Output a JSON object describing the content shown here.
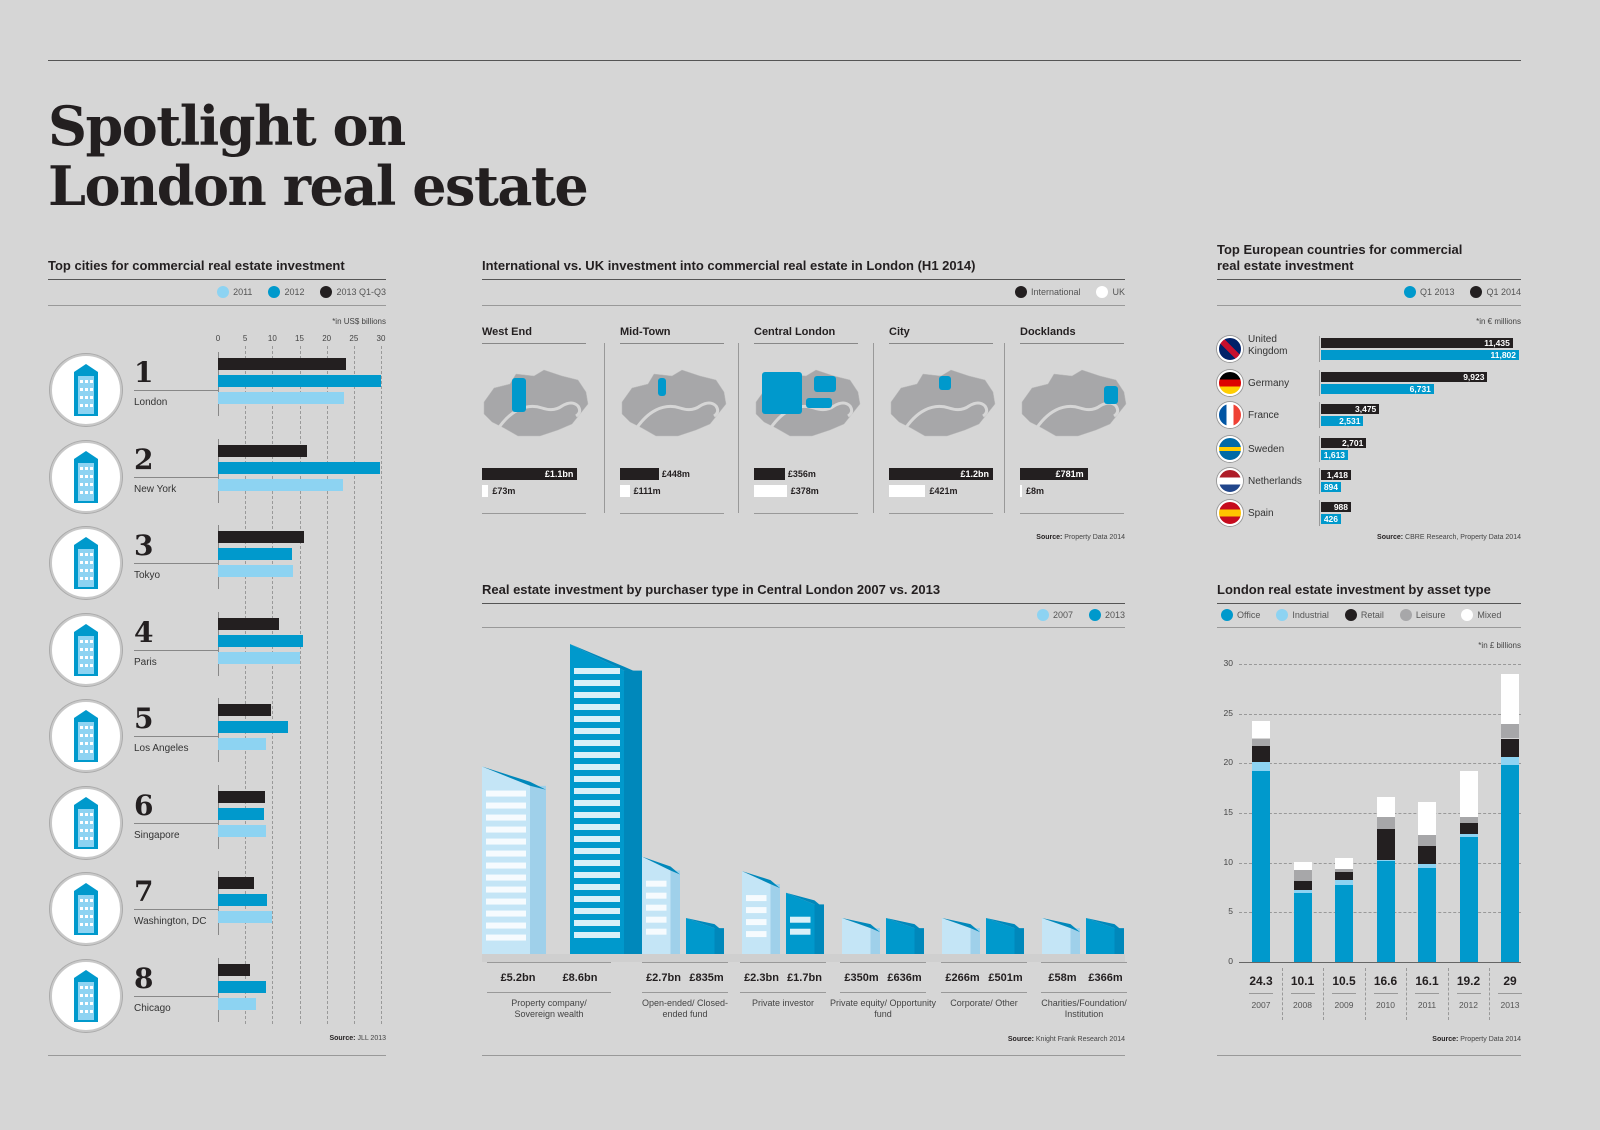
{
  "title_line1": "Spotlight on",
  "title_line2": "London real estate",
  "colors": {
    "light_blue": "#8dd3f2",
    "blue": "#0099cc",
    "black": "#231f20",
    "gray": "#a7a7a9",
    "white": "#ffffff",
    "bg": "#d6d6d6"
  },
  "cities": {
    "title": "Top cities for commercial real estate investment",
    "legend": [
      "2011",
      "2012",
      "2013 Q1-Q3"
    ],
    "note": "*in US$ billions",
    "source_label": "Source:",
    "source": "JLL 2013",
    "ticks": [
      "0",
      "5",
      "10",
      "15",
      "20",
      "25",
      "30"
    ],
    "items": [
      {
        "rank": "1",
        "name": "London",
        "icon": "gherkin-icon"
      },
      {
        "rank": "2",
        "name": "New York",
        "icon": "empire-state-icon"
      },
      {
        "rank": "3",
        "name": "Tokyo",
        "icon": "tokyo-towers-icon"
      },
      {
        "rank": "4",
        "name": "Paris",
        "icon": "eiffel-tower-icon"
      },
      {
        "rank": "5",
        "name": "Los Angeles",
        "icon": "la-building-icon"
      },
      {
        "rank": "6",
        "name": "Singapore",
        "icon": "singapore-tower-icon"
      },
      {
        "rank": "7",
        "name": "Washington, DC",
        "icon": "capitol-icon"
      },
      {
        "rank": "8",
        "name": "Chicago",
        "icon": "willis-tower-icon"
      }
    ]
  },
  "international": {
    "title": "International vs. UK investment into commercial real estate in London (H1 2014)",
    "legend": [
      "International",
      "UK"
    ],
    "source_label": "Source:",
    "source": "Property Data 2014",
    "districts": [
      {
        "name": "West End",
        "intl": "£1.1bn",
        "uk": "£73m"
      },
      {
        "name": "Mid-Town",
        "intl": "£448m",
        "uk": "£111m"
      },
      {
        "name": "Central London",
        "intl": "£356m",
        "uk": "£378m"
      },
      {
        "name": "City",
        "intl": "£1.2bn",
        "uk": "£421m"
      },
      {
        "name": "Docklands",
        "intl": "£781m",
        "uk": "£8m"
      }
    ]
  },
  "europe": {
    "title": "Top European countries for commercial real estate investment",
    "legend": [
      "Q1 2013",
      "Q1 2014"
    ],
    "note": "*in € millions",
    "source_label": "Source:",
    "source": "CBRE Research, Property Data 2014",
    "countries": [
      {
        "name": "United Kingdom",
        "q1_2014": "11,435",
        "q1_2013": "11,802"
      },
      {
        "name": "Germany",
        "q1_2014": "9,923",
        "q1_2013": "6,731"
      },
      {
        "name": "France",
        "q1_2014": "3,475",
        "q1_2013": "2,531"
      },
      {
        "name": "Sweden",
        "q1_2014": "2,701",
        "q1_2013": "1,613"
      },
      {
        "name": "Netherlands",
        "q1_2014": "1,418",
        "q1_2013": "894"
      },
      {
        "name": "Spain",
        "q1_2014": "988",
        "q1_2013": "426"
      }
    ]
  },
  "purchaser": {
    "title": "Real estate investment by purchaser type in Central London 2007 vs. 2013",
    "legend": [
      "2007",
      "2013"
    ],
    "source_label": "Source:",
    "source": "Knight Frank Research 2014",
    "groups": [
      {
        "label": "Property company/ Sovereign wealth",
        "v2007": "£5.2bn",
        "v2013": "£8.6bn"
      },
      {
        "label": "Open-ended/ Closed-ended fund",
        "v2007": "£2.7bn",
        "v2013": "£835m"
      },
      {
        "label": "Private investor",
        "v2007": "£2.3bn",
        "v2013": "£1.7bn"
      },
      {
        "label": "Private equity/ Opportunity fund",
        "v2007": "£350m",
        "v2013": "£636m"
      },
      {
        "label": "Corporate/ Other",
        "v2007": "£266m",
        "v2013": "£501m"
      },
      {
        "label": "Charities/Foundation/ Institution",
        "v2007": "£58m",
        "v2013": "£366m"
      }
    ]
  },
  "asset": {
    "title": "London real estate investment by asset type",
    "legend": [
      "Office",
      "Industrial",
      "Retail",
      "Leisure",
      "Mixed"
    ],
    "note": "*in £ billions",
    "source_label": "Source:",
    "source": "Property Data 2014"
  },
  "chart_data": [
    {
      "type": "bar",
      "title": "Top cities for commercial real estate investment",
      "xlabel": "US$ billions",
      "orientation": "horizontal",
      "categories": [
        "London",
        "New York",
        "Tokyo",
        "Paris",
        "Los Angeles",
        "Singapore",
        "Washington, DC",
        "Chicago"
      ],
      "series": [
        {
          "name": "2013 Q1-Q3",
          "values": [
            23.5,
            16.3,
            15.8,
            11.2,
            9.8,
            8.6,
            6.6,
            5.9
          ]
        },
        {
          "name": "2012",
          "values": [
            30,
            29.8,
            13.7,
            15.6,
            12.9,
            8.5,
            9.1,
            8.8
          ]
        },
        {
          "name": "2011",
          "values": [
            23.2,
            23.0,
            13.8,
            15.1,
            8.8,
            8.8,
            10.0,
            7.0
          ]
        }
      ],
      "xlim": [
        0,
        30
      ],
      "grid": true,
      "legend": "top-right"
    },
    {
      "type": "bar",
      "title": "International vs. UK investment into commercial real estate in London (H1 2014)",
      "categories": [
        "West End",
        "Mid-Town",
        "Central London",
        "City",
        "Docklands"
      ],
      "series": [
        {
          "name": "International",
          "values": [
            1100,
            448,
            356,
            1200,
            781
          ],
          "unit": "£m"
        },
        {
          "name": "UK",
          "values": [
            73,
            111,
            378,
            421,
            8
          ],
          "unit": "£m"
        }
      ]
    },
    {
      "type": "bar",
      "title": "Top European countries for commercial real estate investment",
      "xlabel": "€ millions",
      "orientation": "horizontal",
      "categories": [
        "United Kingdom",
        "Germany",
        "France",
        "Sweden",
        "Netherlands",
        "Spain"
      ],
      "series": [
        {
          "name": "Q1 2014",
          "values": [
            11435,
            9923,
            3475,
            2701,
            1418,
            988
          ]
        },
        {
          "name": "Q1 2013",
          "values": [
            11802,
            6731,
            2531,
            1613,
            894,
            426
          ]
        }
      ],
      "legend": "top-right"
    },
    {
      "type": "bar",
      "title": "Real estate investment by purchaser type in Central London 2007 vs. 2013",
      "categories": [
        "Property company/Sovereign wealth",
        "Open-ended/Closed-ended fund",
        "Private investor",
        "Private equity/Opportunity fund",
        "Corporate/Other",
        "Charities/Foundation/Institution"
      ],
      "series": [
        {
          "name": "2007",
          "values": [
            5200,
            2700,
            2300,
            350,
            266,
            58
          ],
          "unit": "£m"
        },
        {
          "name": "2013",
          "values": [
            8600,
            835,
            1700,
            636,
            501,
            366
          ],
          "unit": "£m"
        }
      ],
      "legend": "top-right"
    },
    {
      "type": "bar",
      "stacked": true,
      "title": "London real estate investment by asset type",
      "ylabel": "£ billions",
      "categories": [
        "2007",
        "2008",
        "2009",
        "2010",
        "2011",
        "2012",
        "2013"
      ],
      "totals": [
        24.3,
        10.1,
        10.5,
        16.6,
        16.1,
        19.2,
        29
      ],
      "series": [
        {
          "name": "Office",
          "values": [
            19.2,
            6.9,
            7.8,
            10.2,
            9.5,
            12.6,
            19.8
          ]
        },
        {
          "name": "Industrial",
          "values": [
            0.9,
            0.3,
            0.5,
            0.1,
            0.4,
            0.3,
            0.8
          ]
        },
        {
          "name": "Retail",
          "values": [
            1.6,
            1.0,
            0.8,
            3.1,
            1.8,
            1.1,
            1.9
          ]
        },
        {
          "name": "Leisure",
          "values": [
            0.8,
            1.1,
            0.3,
            1.2,
            1.1,
            0.6,
            1.5
          ]
        },
        {
          "name": "Mixed",
          "values": [
            1.8,
            0.8,
            1.1,
            2.0,
            3.3,
            4.6,
            5.0
          ]
        }
      ],
      "ylim": [
        0,
        30
      ],
      "yticks": [
        0,
        5,
        10,
        15,
        20,
        25,
        30
      ],
      "grid": true,
      "legend": "top"
    }
  ]
}
